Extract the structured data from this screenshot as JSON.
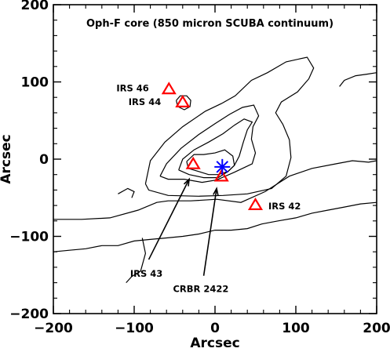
{
  "chart_data": {
    "type": "contour",
    "title": "Oph-F core (850 micron SCUBA continuum)",
    "xlabel": "Arcsec",
    "ylabel": "Arcsec",
    "xlim": [
      -200,
      200
    ],
    "ylim": [
      -200,
      200
    ],
    "xticks": [
      "−200",
      "−100",
      "0",
      "100",
      "200"
    ],
    "yticks": [
      "−200",
      "−100",
      "0",
      "100",
      "200"
    ],
    "xtick_values": [
      -200,
      -100,
      0,
      100,
      200
    ],
    "ytick_values": [
      -200,
      -100,
      0,
      100,
      200
    ],
    "grid": false,
    "colors": {
      "triangle": "#ff0000",
      "star": "#0000ff",
      "contour": "#000000"
    },
    "sources": [
      {
        "name": "IRS 46",
        "x": -57,
        "y": 90,
        "marker": "triangle"
      },
      {
        "name": "IRS 44",
        "x": -40,
        "y": 73,
        "marker": "triangle"
      },
      {
        "name": "IRS 43",
        "x": -27,
        "y": -7,
        "marker": "triangle"
      },
      {
        "name": "CRBR 2422",
        "x": 8,
        "y": -23,
        "marker": "triangle"
      },
      {
        "name": "IRS 42",
        "x": 50,
        "y": -60,
        "marker": "triangle"
      },
      {
        "name": "",
        "x": 9,
        "y": -10,
        "marker": "star"
      }
    ],
    "labels": [
      {
        "text": "IRS 46",
        "x": -122,
        "y": 92
      },
      {
        "text": "IRS 44",
        "x": -107,
        "y": 74
      },
      {
        "text": "IRS 42",
        "x": 66,
        "y": -61
      },
      {
        "text": "IRS 43",
        "x": -105,
        "y": -148
      },
      {
        "text": "CRBR 2422",
        "x": -52,
        "y": -168
      }
    ],
    "arrows": [
      {
        "from": [
          -82,
          -130
        ],
        "to": [
          -32,
          -26
        ]
      },
      {
        "from": [
          -14,
          -151
        ],
        "to": [
          2,
          -38
        ]
      }
    ],
    "contours": [
      [
        [
          -200,
          -78
        ],
        [
          -165,
          -78
        ],
        [
          -130,
          -76
        ],
        [
          -95,
          -66
        ],
        [
          -72,
          -56
        ],
        [
          -58,
          -54
        ],
        [
          -30,
          -54
        ],
        [
          2,
          -52
        ],
        [
          32,
          -56
        ],
        [
          62,
          -42
        ],
        [
          92,
          -22
        ],
        [
          120,
          -12
        ],
        [
          150,
          -6
        ],
        [
          170,
          -2
        ],
        [
          190,
          -4
        ],
        [
          200,
          -2
        ]
      ],
      [
        [
          -200,
          -120
        ],
        [
          -180,
          -118
        ],
        [
          -160,
          -116
        ],
        [
          -140,
          -112
        ],
        [
          -120,
          -112
        ],
        [
          -100,
          -106
        ],
        [
          -80,
          -104
        ],
        [
          -60,
          -102
        ],
        [
          -40,
          -100
        ],
        [
          -20,
          -97
        ],
        [
          0,
          -92
        ],
        [
          20,
          -92
        ],
        [
          40,
          -90
        ],
        [
          58,
          -84
        ],
        [
          78,
          -80
        ],
        [
          100,
          -76
        ],
        [
          120,
          -70
        ],
        [
          140,
          -66
        ],
        [
          160,
          -62
        ],
        [
          180,
          -58
        ],
        [
          200,
          -56
        ]
      ],
      [
        [
          -90,
          -102
        ],
        [
          -86,
          -122
        ],
        [
          -92,
          -145
        ],
        [
          -103,
          -152
        ],
        [
          -110,
          -160
        ]
      ],
      [
        [
          -120,
          -45
        ],
        [
          -108,
          -38
        ],
        [
          -100,
          -42
        ],
        [
          -103,
          -50
        ]
      ],
      [
        [
          -86,
          -32
        ],
        [
          -80,
          -2
        ],
        [
          -62,
          22
        ],
        [
          -40,
          42
        ],
        [
          -12,
          62
        ],
        [
          8,
          72
        ],
        [
          25,
          82
        ],
        [
          45,
          102
        ],
        [
          65,
          112
        ],
        [
          88,
          126
        ],
        [
          114,
          132
        ],
        [
          122,
          118
        ],
        [
          116,
          104
        ],
        [
          102,
          87
        ],
        [
          82,
          74
        ],
        [
          75,
          60
        ],
        [
          84,
          45
        ],
        [
          92,
          25
        ],
        [
          94,
          2
        ],
        [
          88,
          -22
        ],
        [
          70,
          -38
        ],
        [
          40,
          -45
        ],
        [
          10,
          -47
        ],
        [
          -20,
          -48
        ],
        [
          -58,
          -47
        ],
        [
          -82,
          -40
        ],
        [
          -86,
          -32
        ]
      ],
      [
        [
          -68,
          -22
        ],
        [
          -60,
          -6
        ],
        [
          -42,
          14
        ],
        [
          -20,
          32
        ],
        [
          0,
          46
        ],
        [
          18,
          58
        ],
        [
          34,
          67
        ],
        [
          48,
          70
        ],
        [
          54,
          56
        ],
        [
          47,
          42
        ],
        [
          45,
          26
        ],
        [
          50,
          8
        ],
        [
          46,
          -6
        ],
        [
          24,
          -17
        ],
        [
          2,
          -27
        ],
        [
          -16,
          -30
        ],
        [
          -38,
          -26
        ],
        [
          -58,
          -26
        ],
        [
          -68,
          -22
        ]
      ],
      [
        [
          -45,
          -14
        ],
        [
          -40,
          0
        ],
        [
          -26,
          12
        ],
        [
          -8,
          22
        ],
        [
          10,
          33
        ],
        [
          24,
          44
        ],
        [
          36,
          52
        ],
        [
          46,
          48
        ],
        [
          40,
          38
        ],
        [
          35,
          22
        ],
        [
          30,
          4
        ],
        [
          24,
          -8
        ],
        [
          16,
          -16
        ],
        [
          4,
          -24
        ],
        [
          -14,
          -24
        ],
        [
          -32,
          -20
        ],
        [
          -45,
          -14
        ]
      ],
      [
        [
          -35,
          -3
        ],
        [
          -26,
          6
        ],
        [
          -14,
          6
        ],
        [
          0,
          8
        ],
        [
          12,
          12
        ],
        [
          22,
          4
        ],
        [
          24,
          -8
        ],
        [
          16,
          -16
        ],
        [
          4,
          -20
        ],
        [
          -8,
          -20
        ],
        [
          -20,
          -16
        ],
        [
          -33,
          -12
        ],
        [
          -35,
          -3
        ]
      ],
      [
        [
          -48,
          76
        ],
        [
          -43,
          82
        ],
        [
          -35,
          82
        ],
        [
          -30,
          76
        ],
        [
          -31,
          68
        ],
        [
          -38,
          64
        ],
        [
          -46,
          68
        ],
        [
          -48,
          76
        ]
      ],
      [
        [
          154,
          94
        ],
        [
          160,
          102
        ],
        [
          174,
          108
        ],
        [
          188,
          110
        ],
        [
          200,
          112
        ]
      ]
    ]
  }
}
